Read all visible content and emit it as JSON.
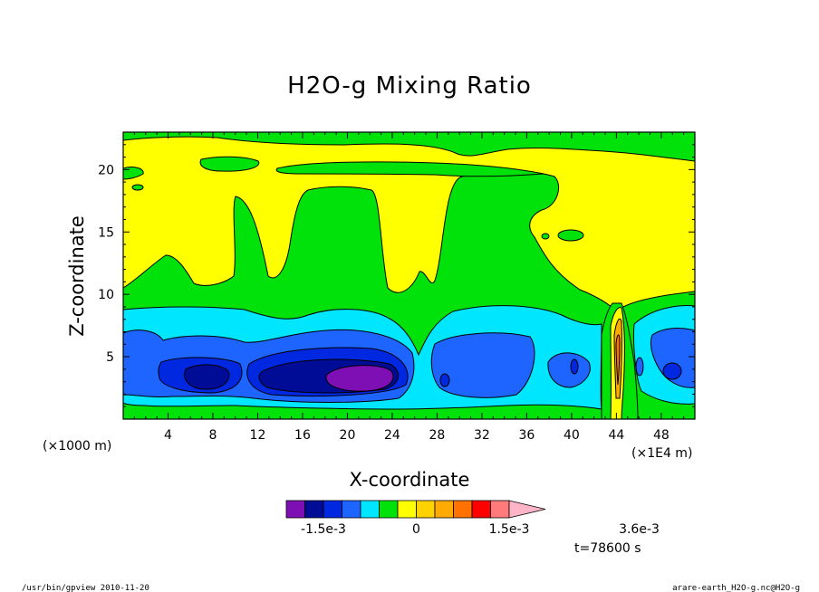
{
  "chart_data": {
    "type": "heatmap",
    "title": "H2O-g Mixing Ratio",
    "xlabel": "X-coordinate",
    "ylabel": "Z-coordinate",
    "x_unit_left": "(×1000 m)",
    "x_unit_right": "(×1E4 m)",
    "xlim": [
      0,
      51
    ],
    "ylim": [
      0,
      23
    ],
    "xticks": [
      4,
      8,
      12,
      16,
      20,
      24,
      28,
      32,
      36,
      40,
      44,
      48
    ],
    "yticks": [
      5,
      10,
      15,
      20
    ],
    "colorbar": {
      "colors": [
        "#7e0fb5",
        "#000c96",
        "#0028e0",
        "#1e64ff",
        "#00e6ff",
        "#00e20a",
        "#ffff00",
        "#ffd200",
        "#ffaa00",
        "#ff7200",
        "#ff0000",
        "#ff7b7b",
        "#ffb4c8"
      ],
      "labels": [
        {
          "text": "-1.5e-3",
          "value": -0.0015
        },
        {
          "text": "0",
          "value": 0
        },
        {
          "text": "1.5e-3",
          "value": 0.0015
        },
        {
          "text": "3.6e-3",
          "value": 0.0036
        }
      ]
    },
    "time_label": "t=78600 s"
  },
  "footer": {
    "left": "/usr/bin/gpview  2010-11-20",
    "right": "arare-earth_H2O-g.nc@H2O-g"
  }
}
